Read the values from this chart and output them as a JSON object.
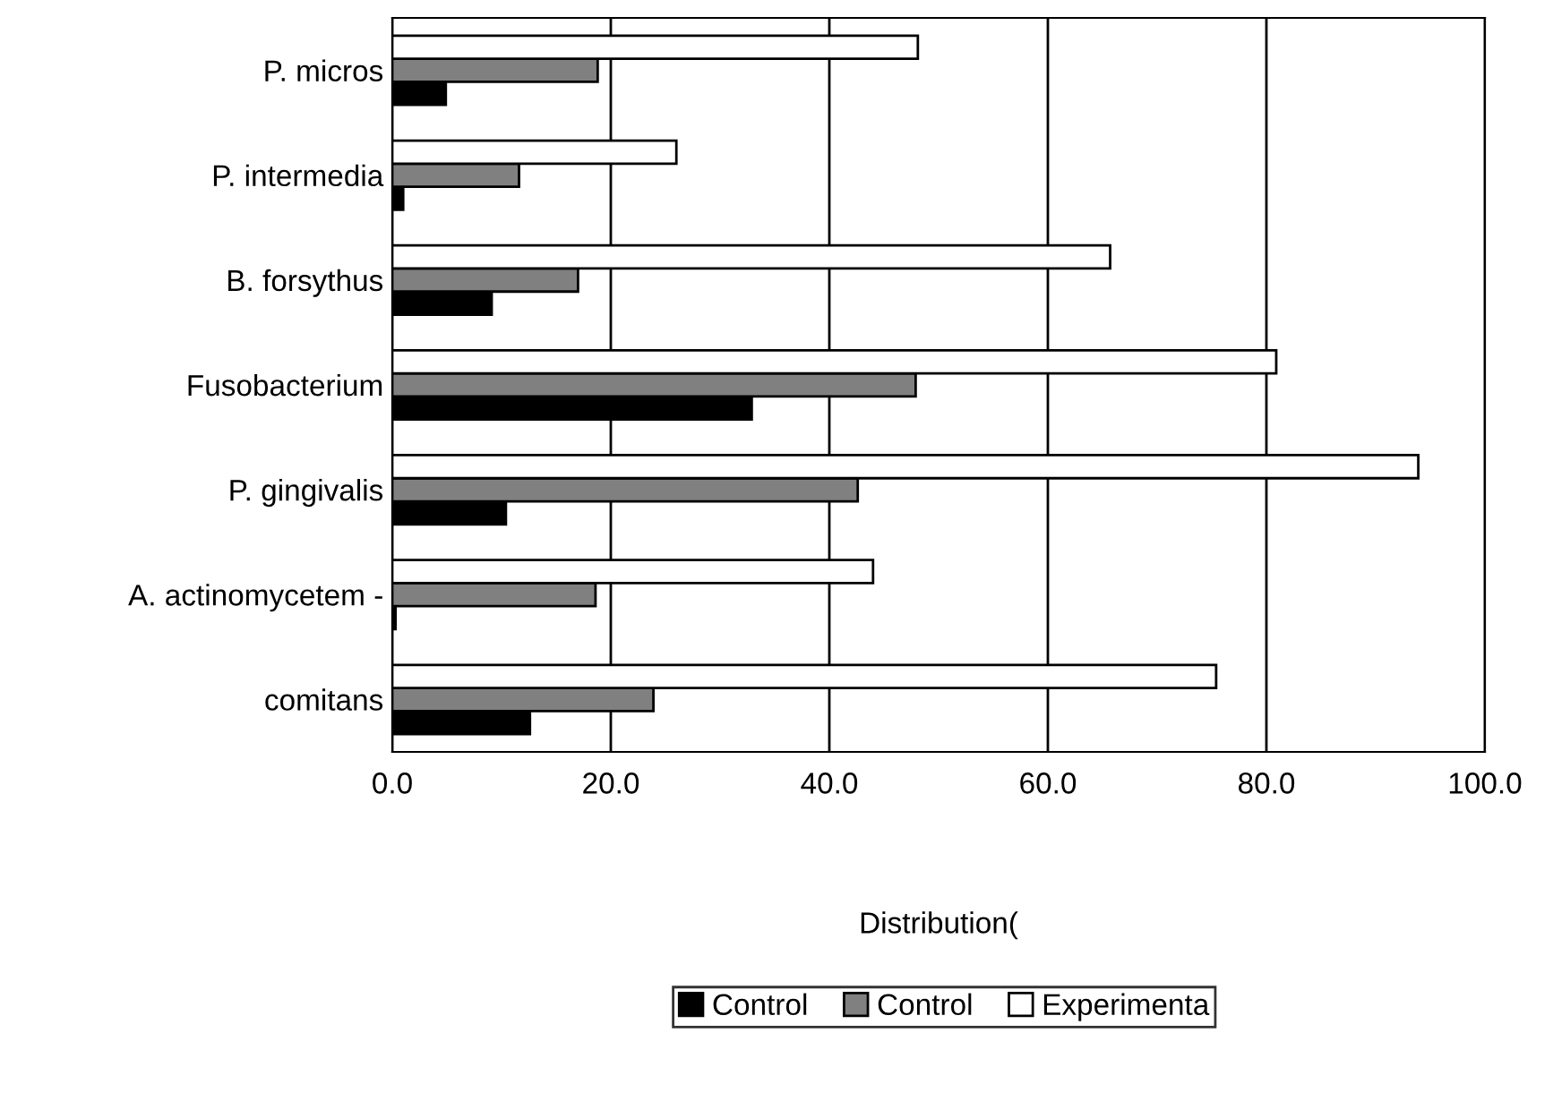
{
  "chart_data": {
    "type": "bar",
    "orientation": "horizontal",
    "xlabel": "Distribution(",
    "categories": [
      "P. micros",
      "P. intermedia",
      "B. forsythus",
      "Fusobacterium",
      "P. gingivalis",
      "A. actinomycetem -",
      "comitans"
    ],
    "series": [
      {
        "name": "Control",
        "color": "#000000",
        "values": [
          4.9,
          1.0,
          9.1,
          32.9,
          10.4,
          0.3,
          12.6
        ]
      },
      {
        "name": "Control",
        "color": "#808080",
        "values": [
          18.8,
          11.6,
          17.0,
          47.9,
          42.6,
          18.6,
          23.9
        ]
      },
      {
        "name": "Experimenta",
        "color": "#ffffff",
        "values": [
          48.1,
          26.0,
          65.7,
          80.9,
          93.9,
          44.0,
          75.4
        ]
      }
    ],
    "xlim": [
      0,
      100
    ],
    "xticks": [
      {
        "value": 0,
        "label": "0.0"
      },
      {
        "value": 20,
        "label": "20.0"
      },
      {
        "value": 40,
        "label": "40.0"
      },
      {
        "value": 60,
        "label": "60.0"
      },
      {
        "value": 80,
        "label": "80.0"
      },
      {
        "value": 100,
        "label": "100.0"
      }
    ],
    "grid": "x",
    "legend": "bottom"
  }
}
